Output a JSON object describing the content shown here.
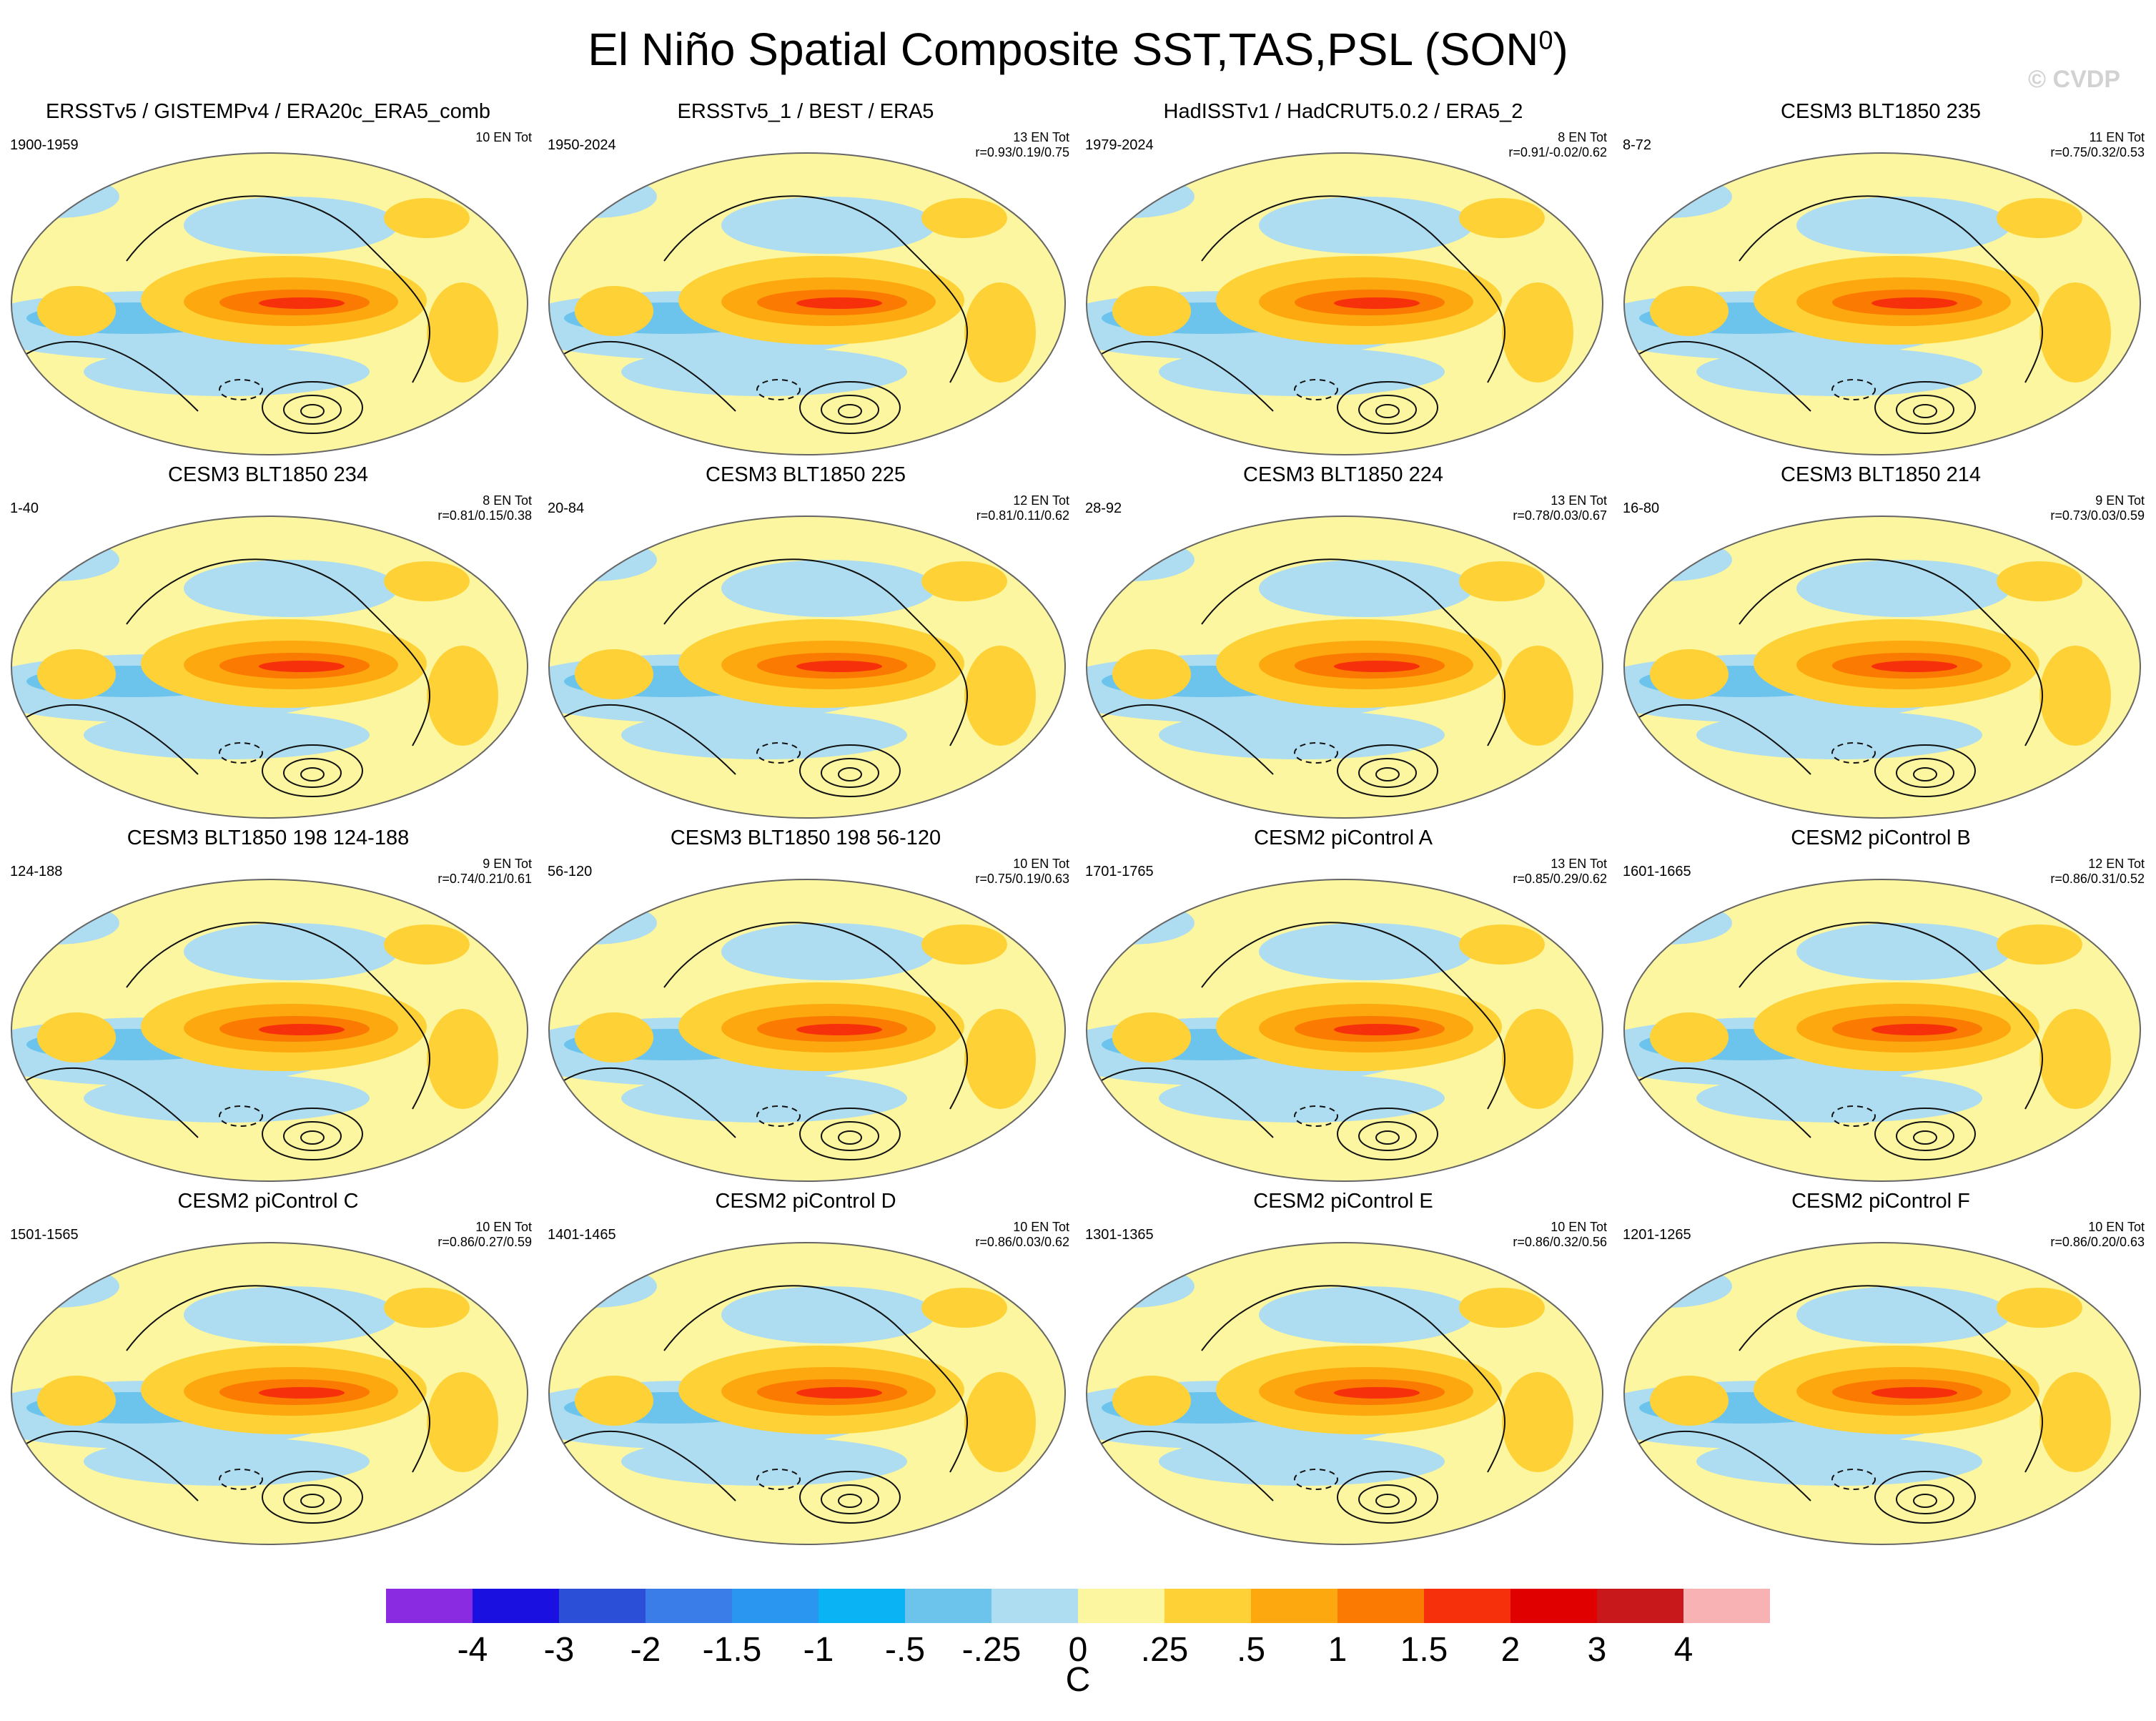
{
  "figure": {
    "title": "El Niño Spatial Composite SST,TAS,PSL (SON",
    "title_sup": "0",
    "title_close": ")",
    "watermark": "© CVDP"
  },
  "chart_data": {
    "type": "heatmap",
    "title": "El Niño Spatial Composite SST,TAS,PSL (SON0)",
    "colorbar": {
      "unit": "C",
      "levels": [
        "-4",
        "-3",
        "-2",
        "-1.5",
        "-1",
        "-.5",
        "-.25",
        "0",
        ".25",
        ".5",
        "1",
        "1.5",
        "2",
        "3",
        "4"
      ],
      "colors": [
        "#8a2be2",
        "#1a10e0",
        "#2c4fd8",
        "#3a7de8",
        "#2a96f0",
        "#0ab4f4",
        "#6cc4ec",
        "#aedcf0",
        "#fcf6a0",
        "#fed236",
        "#fca80e",
        "#fa7a02",
        "#f5300a",
        "#e00000",
        "#c8181c",
        "#f9b2b4"
      ]
    },
    "panels": [
      {
        "title": "ERSSTv5 / GISTEMPv4 / ERA20c_ERA5_comb",
        "years": "1900-1959",
        "count": "10 EN Tot",
        "corr": ""
      },
      {
        "title": "ERSSTv5_1 / BEST / ERA5",
        "years": "1950-2024",
        "count": "13 EN Tot",
        "corr": "r=0.93/0.19/0.75"
      },
      {
        "title": "HadISSTv1 / HadCRUT5.0.2 / ERA5_2",
        "years": "1979-2024",
        "count": "8 EN Tot",
        "corr": "r=0.91/-0.02/0.62"
      },
      {
        "title": "CESM3 BLT1850 235",
        "years": "8-72",
        "count": "11 EN Tot",
        "corr": "r=0.75/0.32/0.53"
      },
      {
        "title": "CESM3 BLT1850 234",
        "years": "1-40",
        "count": "8 EN Tot",
        "corr": "r=0.81/0.15/0.38"
      },
      {
        "title": "CESM3 BLT1850 225",
        "years": "20-84",
        "count": "12 EN Tot",
        "corr": "r=0.81/0.11/0.62"
      },
      {
        "title": "CESM3 BLT1850 224",
        "years": "28-92",
        "count": "13 EN Tot",
        "corr": "r=0.78/0.03/0.67"
      },
      {
        "title": "CESM3 BLT1850 214",
        "years": "16-80",
        "count": "9 EN Tot",
        "corr": "r=0.73/0.03/0.59"
      },
      {
        "title": "CESM3 BLT1850 198 124-188",
        "years": "124-188",
        "count": "9 EN Tot",
        "corr": "r=0.74/0.21/0.61"
      },
      {
        "title": "CESM3 BLT1850 198 56-120",
        "years": "56-120",
        "count": "10 EN Tot",
        "corr": "r=0.75/0.19/0.63"
      },
      {
        "title": "CESM2 piControl A",
        "years": "1701-1765",
        "count": "13 EN Tot",
        "corr": "r=0.85/0.29/0.62"
      },
      {
        "title": "CESM2 piControl B",
        "years": "1601-1665",
        "count": "12 EN Tot",
        "corr": "r=0.86/0.31/0.52"
      },
      {
        "title": "CESM2 piControl C",
        "years": "1501-1565",
        "count": "10 EN Tot",
        "corr": "r=0.86/0.27/0.59"
      },
      {
        "title": "CESM2 piControl D",
        "years": "1401-1465",
        "count": "10 EN Tot",
        "corr": "r=0.86/0.03/0.62"
      },
      {
        "title": "CESM2 piControl E",
        "years": "1301-1365",
        "count": "10 EN Tot",
        "corr": "r=0.86/0.32/0.56"
      },
      {
        "title": "CESM2 piControl F",
        "years": "1201-1265",
        "count": "10 EN Tot",
        "corr": "r=0.86/0.20/0.63"
      }
    ]
  }
}
